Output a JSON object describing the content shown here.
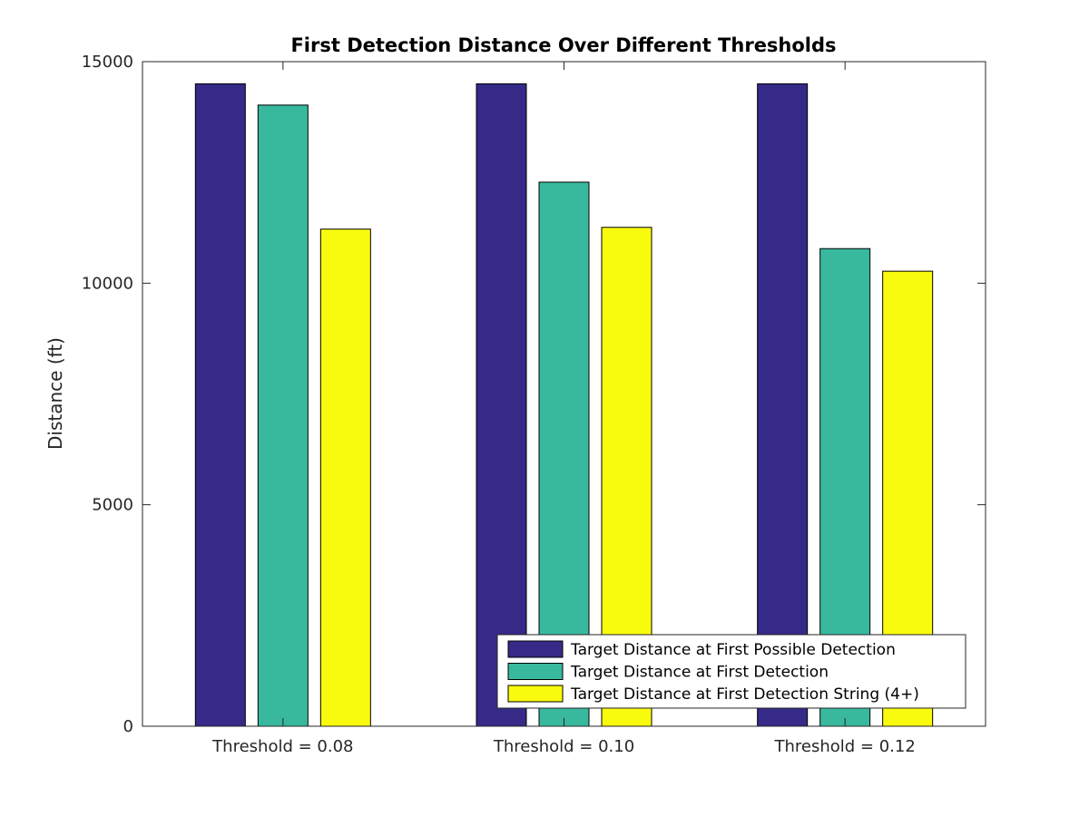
{
  "chart_data": {
    "type": "bar",
    "title": "First Detection Distance Over Different Thresholds",
    "xlabel": "",
    "ylabel": "Distance (ft)",
    "ylim": [
      0,
      15000
    ],
    "yticks": [
      0,
      5000,
      10000,
      15000
    ],
    "categories": [
      "Threshold = 0.08",
      "Threshold = 0.10",
      "Threshold = 0.12"
    ],
    "series": [
      {
        "name": "Target Distance at First Possible Detection",
        "color": "#352a87",
        "values": [
          14500,
          14500,
          14500
        ]
      },
      {
        "name": "Target Distance at First Detection",
        "color": "#38b99e",
        "values": [
          14020,
          12280,
          10780
        ]
      },
      {
        "name": "Target Distance at First Detection String (4+)",
        "color": "#f9fb0e",
        "values": [
          11220,
          11260,
          10270
        ]
      }
    ],
    "legend_position": "bottom-right",
    "grid": false
  }
}
